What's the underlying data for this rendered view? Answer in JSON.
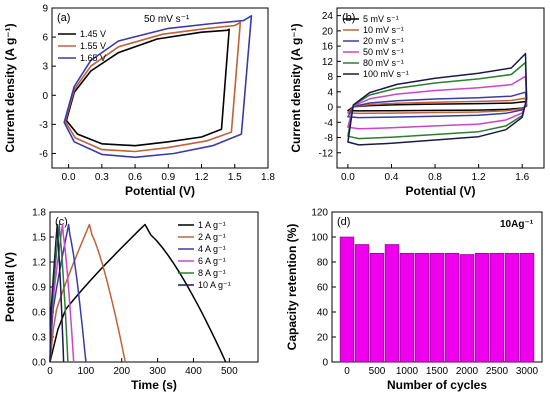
{
  "chart_data": [
    {
      "id": "a",
      "type": "line",
      "panel_label": "(a)",
      "annotation": "50 mV s⁻¹",
      "xlabel": "Potential (V)",
      "ylabel": "Current density (A g⁻¹)",
      "xlim": [
        -0.15,
        1.8
      ],
      "ylim": [
        -7.5,
        9
      ],
      "xticks": [
        "0.0",
        "0.3",
        "0.6",
        "0.9",
        "1.2",
        "1.5",
        "1.8"
      ],
      "yticks": [
        "-6",
        "-3",
        "0",
        "3",
        "6",
        "9"
      ],
      "legend_position": "top-left",
      "series": [
        {
          "name": "1.45 V",
          "color": "#000000",
          "x": [
            -0.02,
            0.05,
            0.2,
            0.45,
            0.8,
            1.2,
            1.43,
            1.45,
            1.38,
            1.2,
            0.9,
            0.6,
            0.3,
            0.08,
            -0.02
          ],
          "y": [
            -2.6,
            0.3,
            2.5,
            4.4,
            5.8,
            6.5,
            6.7,
            6.8,
            -3.5,
            -4.3,
            -4.8,
            -5.2,
            -5.0,
            -4.0,
            -2.6
          ]
        },
        {
          "name": "1.55 V",
          "color": "#c0623a",
          "x": [
            -0.03,
            0.05,
            0.2,
            0.45,
            0.85,
            1.25,
            1.5,
            1.55,
            1.47,
            1.25,
            0.9,
            0.6,
            0.3,
            0.06,
            -0.03
          ],
          "y": [
            -2.7,
            0.6,
            3.0,
            5.0,
            6.3,
            6.9,
            7.2,
            7.5,
            -3.8,
            -4.7,
            -5.4,
            -5.8,
            -5.6,
            -4.4,
            -2.7
          ]
        },
        {
          "name": "1.65 V",
          "color": "#3a3aaa",
          "x": [
            -0.04,
            0.05,
            0.2,
            0.45,
            0.9,
            1.3,
            1.58,
            1.65,
            1.56,
            1.3,
            0.95,
            0.6,
            0.3,
            0.05,
            -0.04
          ],
          "y": [
            -2.8,
            0.9,
            3.6,
            5.6,
            6.9,
            7.4,
            7.7,
            8.2,
            -4.0,
            -5.2,
            -6.0,
            -6.4,
            -6.1,
            -4.8,
            -2.8
          ]
        }
      ]
    },
    {
      "id": "b",
      "type": "line",
      "panel_label": "(b)",
      "xlabel": "Potential (V)",
      "ylabel": "Current density (A g⁻¹)",
      "xlim": [
        -0.1,
        1.8
      ],
      "ylim": [
        -16,
        26
      ],
      "xticks": [
        "0.0",
        "0.4",
        "0.8",
        "1.2",
        "1.6"
      ],
      "yticks": [
        "-12",
        "-8",
        "-4",
        "0",
        "4",
        "8",
        "12",
        "16",
        "20",
        "24"
      ],
      "legend_position": "top-left",
      "series": [
        {
          "name": "5 mV s⁻¹",
          "color": "#000000",
          "scale": 1.1
        },
        {
          "name": "10 mV s⁻¹",
          "color": "#c0623a",
          "scale": 1.8
        },
        {
          "name": "20 mV s⁻¹",
          "color": "#3a3aaa",
          "scale": 3.0
        },
        {
          "name": "50 mV s⁻¹",
          "color": "#cc44cc",
          "scale": 6.2
        },
        {
          "name": "80 mV s⁻¹",
          "color": "#2e7d32",
          "scale": 9.0
        },
        {
          "name": "100 mV s⁻¹",
          "color": "#1a1a4a",
          "scale": 10.8
        }
      ]
    },
    {
      "id": "c",
      "type": "line",
      "panel_label": "(c)",
      "xlabel": "Time (s)",
      "ylabel": "Potential (V)",
      "xlim": [
        0,
        580
      ],
      "ylim": [
        0,
        1.8
      ],
      "xticks": [
        "0",
        "100",
        "200",
        "300",
        "400",
        "500"
      ],
      "yticks": [
        "0.0",
        "0.3",
        "0.6",
        "0.9",
        "1.2",
        "1.5",
        "1.8"
      ],
      "legend_position": "top-right",
      "series": [
        {
          "name": "1 A g⁻¹",
          "color": "#000000",
          "charge_end": 265,
          "discharge_end": 490
        },
        {
          "name": "2 A g⁻¹",
          "color": "#c0623a",
          "charge_end": 110,
          "discharge_end": 210
        },
        {
          "name": "4 A g⁻¹",
          "color": "#3a3aaa",
          "charge_end": 52,
          "discharge_end": 100
        },
        {
          "name": "6 A g⁻¹",
          "color": "#cc44cc",
          "charge_end": 35,
          "discharge_end": 66
        },
        {
          "name": "8 A g⁻¹",
          "color": "#2e7d32",
          "charge_end": 26,
          "discharge_end": 50
        },
        {
          "name": "10 A g⁻¹",
          "color": "#1a1a4a",
          "charge_end": 20,
          "discharge_end": 38
        }
      ]
    },
    {
      "id": "d",
      "type": "bar",
      "panel_label": "(d)",
      "annotation": "10Ag⁻¹",
      "xlabel": "Number of cycles",
      "ylabel": "Capacity retention (%)",
      "xlim": [
        -250,
        3250
      ],
      "ylim": [
        0,
        120
      ],
      "xticks": [
        "0",
        "500",
        "1000",
        "1500",
        "2000",
        "2500",
        "3000"
      ],
      "yticks": [
        "0",
        "20",
        "40",
        "60",
        "80",
        "100",
        "120"
      ],
      "bar_color": "#ee00ee",
      "categories": [
        0,
        250,
        500,
        750,
        1000,
        1250,
        1500,
        1750,
        2000,
        2250,
        2500,
        2750,
        3000
      ],
      "values": [
        100,
        94,
        87,
        94,
        87,
        87,
        87,
        87,
        86,
        87,
        87,
        87,
        87
      ]
    }
  ]
}
